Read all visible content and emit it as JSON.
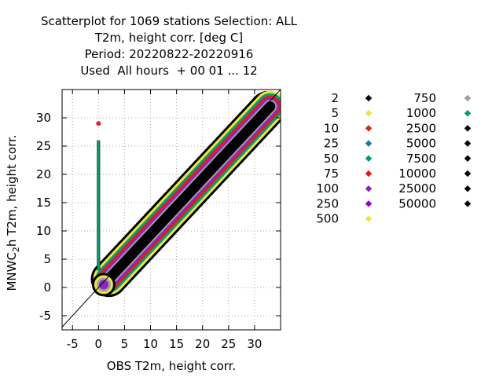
{
  "title_lines": [
    "Scatterplot for 1069 stations Selection: ALL",
    "T2m, height corr. [deg C]",
    "Period: 20220822-20220916",
    "Used  All hours  + 00 01 ... 12"
  ],
  "chart_data": {
    "type": "scatter",
    "xlabel": "OBS T2m, height corr.",
    "ylabel_parts": {
      "main": "MNWC",
      "sub": "2",
      "rest": "h T2m, height corr."
    },
    "xlim": [
      -7,
      35
    ],
    "ylim": [
      -7.5,
      35
    ],
    "xticks": [
      -5,
      0,
      5,
      10,
      15,
      20,
      25,
      30
    ],
    "yticks": [
      -5,
      0,
      5,
      10,
      15,
      20,
      25,
      30
    ],
    "grid": true,
    "diagonal_line": true,
    "legend_placement": "right",
    "density_levels": [
      {
        "label": "2",
        "color": "#000000"
      },
      {
        "label": "5",
        "color": "#f0e442"
      },
      {
        "label": "10",
        "color": "#d62728"
      },
      {
        "label": "25",
        "color": "#1f77b4"
      },
      {
        "label": "50",
        "color": "#009e73"
      },
      {
        "label": "75",
        "color": "#e41a1c"
      },
      {
        "label": "100",
        "color": "#8e24c8"
      },
      {
        "label": "250",
        "color": "#9400d3"
      },
      {
        "label": "500",
        "color": "#f0e442"
      },
      {
        "label": "750",
        "color": "#a0a0a0"
      },
      {
        "label": "1000",
        "color": "#009e73"
      },
      {
        "label": "2500",
        "color": "#000000"
      },
      {
        "label": "5000",
        "color": "#000000"
      },
      {
        "label": "7500",
        "color": "#000000"
      },
      {
        "label": "10000",
        "color": "#000000"
      },
      {
        "label": "25000",
        "color": "#000000"
      },
      {
        "label": "50000",
        "color": "#000000"
      }
    ]
  }
}
